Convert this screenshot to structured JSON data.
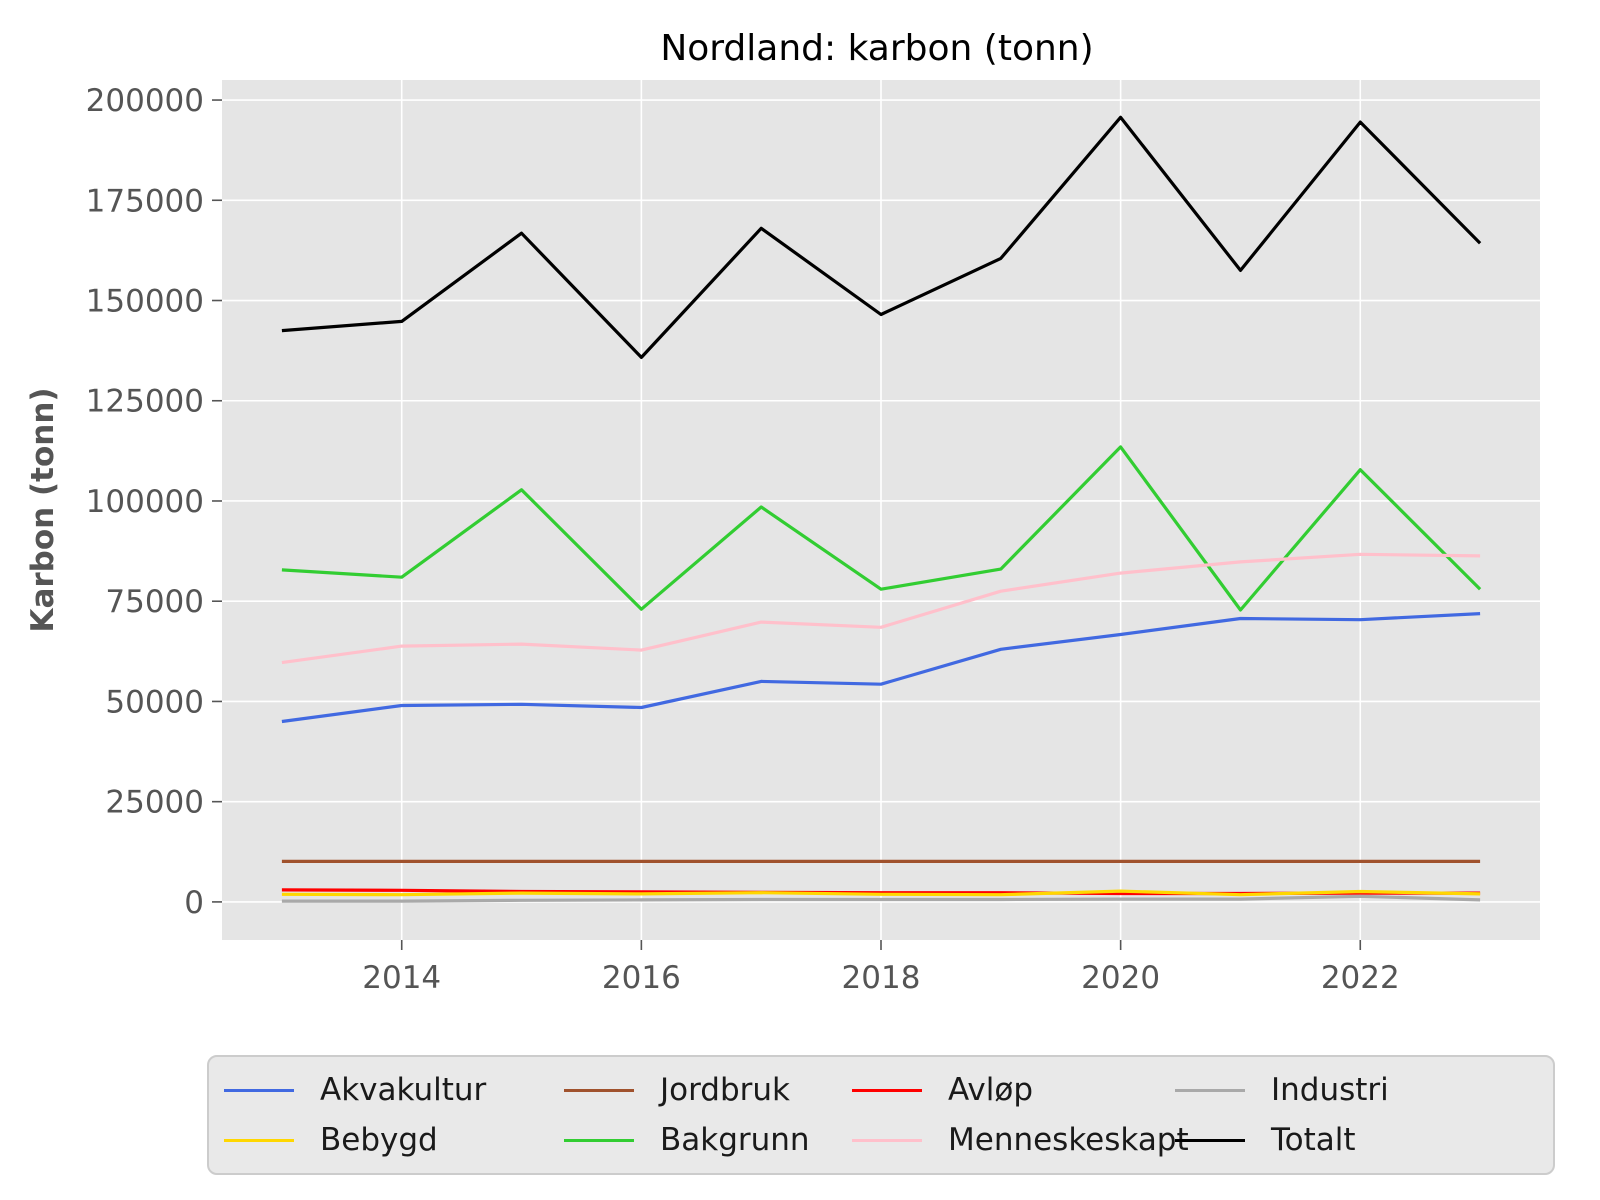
{
  "chart_data": {
    "type": "line",
    "title": "Nordland: karbon (tonn)",
    "xlabel": "",
    "ylabel": "Karbon (tonn)",
    "x": [
      2013,
      2014,
      2015,
      2016,
      2017,
      2018,
      2019,
      2020,
      2021,
      2022,
      2023
    ],
    "xlim": [
      2012.5,
      2023.5
    ],
    "ylim": [
      -9500,
      205000
    ],
    "xticks": [
      2014,
      2016,
      2018,
      2020,
      2022
    ],
    "xtick_labels": [
      "2014",
      "2016",
      "2018",
      "2020",
      "2022"
    ],
    "yticks": [
      0,
      25000,
      50000,
      75000,
      100000,
      125000,
      150000,
      175000,
      200000
    ],
    "ytick_labels": [
      "0",
      "25000",
      "50000",
      "75000",
      "100000",
      "125000",
      "150000",
      "175000",
      "200000"
    ],
    "grid": true,
    "legend_position": "bottom",
    "series": [
      {
        "name": "Akvakultur",
        "color": "#4169e1",
        "values": [
          45000,
          49000,
          49300,
          48500,
          55000,
          54300,
          63000,
          66700,
          70700,
          70400,
          71900
        ]
      },
      {
        "name": "Jordbruk",
        "color": "#a0522d",
        "values": [
          10100,
          10100,
          10100,
          10100,
          10100,
          10100,
          10100,
          10100,
          10100,
          10100,
          10100
        ]
      },
      {
        "name": "Avløp",
        "color": "#ff0000",
        "values": [
          3000,
          2900,
          2600,
          2500,
          2400,
          2300,
          2300,
          2100,
          2100,
          2200,
          2200
        ]
      },
      {
        "name": "Industri",
        "color": "#a9a9a9",
        "values": [
          200,
          200,
          400,
          500,
          600,
          600,
          600,
          700,
          700,
          1400,
          500
        ]
      },
      {
        "name": "Bebygd",
        "color": "#ffd700",
        "values": [
          1900,
          1800,
          2200,
          2000,
          2300,
          1900,
          1800,
          2700,
          1800,
          2600,
          2000
        ]
      },
      {
        "name": "Bakgrunn",
        "color": "#32cd32",
        "values": [
          82800,
          81000,
          102800,
          73000,
          98500,
          78000,
          83000,
          113500,
          72800,
          107800,
          78000
        ]
      },
      {
        "name": "Menneskeskapt",
        "color": "#ffc0cb",
        "values": [
          59700,
          63800,
          64300,
          62800,
          69800,
          68500,
          77500,
          82000,
          84800,
          86700,
          86300
        ]
      },
      {
        "name": "Totalt",
        "color": "#000000",
        "values": [
          142500,
          144800,
          166800,
          135800,
          168000,
          146500,
          160500,
          195700,
          157500,
          194500,
          164300
        ]
      }
    ]
  }
}
